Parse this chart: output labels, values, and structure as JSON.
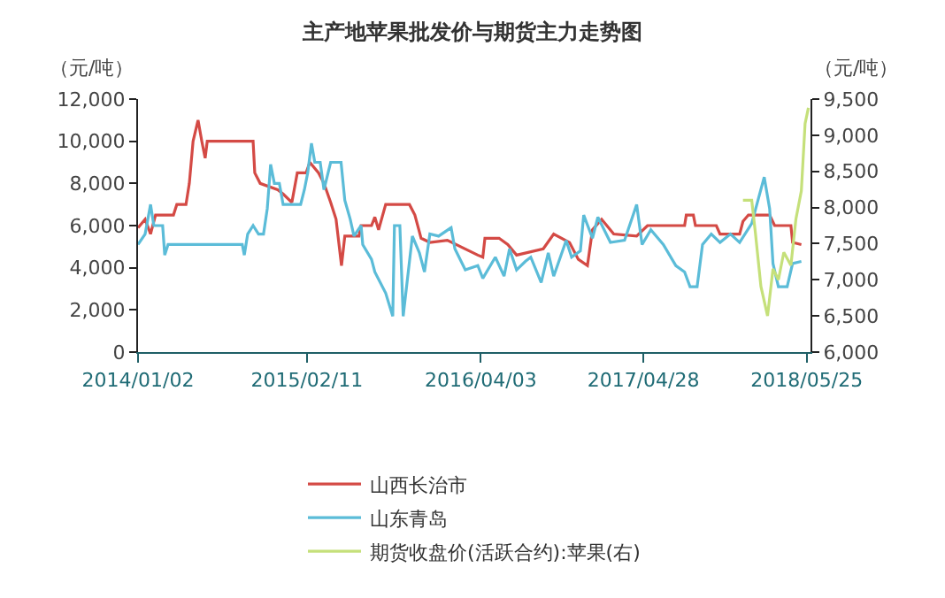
{
  "chart_data": {
    "type": "line",
    "title": "主产地苹果批发价与期货主力走势图",
    "ylabel": "（元/吨）",
    "y2label": "（元/吨）",
    "xlim": [
      "2014-01-02",
      "2018-06-03"
    ],
    "xticks": [
      {
        "value": "2014-01-02",
        "label": "2014/01/02"
      },
      {
        "value": "2015-02-11",
        "label": "2015/02/11"
      },
      {
        "value": "2016-04-03",
        "label": "2016/04/03"
      },
      {
        "value": "2017-04-28",
        "label": "2017/04/28"
      },
      {
        "value": "2018-05-25",
        "label": "2018/05/25"
      }
    ],
    "ylim": [
      0,
      12000
    ],
    "yticks": [
      0,
      {
        "value": 2000,
        "label": "2,000"
      },
      {
        "value": 4000,
        "label": "4,000"
      },
      {
        "value": 6000,
        "label": "6,000"
      },
      {
        "value": 8000,
        "label": "8,000"
      },
      {
        "value": 10000,
        "label": "10,000"
      },
      {
        "value": 12000,
        "label": "12,000"
      }
    ],
    "y2lim": [
      6000,
      9500
    ],
    "y2ticks": [
      {
        "value": 6000,
        "label": "6,000"
      },
      {
        "value": 6500,
        "label": "6,500"
      },
      {
        "value": 7000,
        "label": "7,000"
      },
      {
        "value": 7500,
        "label": "7,500"
      },
      {
        "value": 8000,
        "label": "8,000"
      },
      {
        "value": 8500,
        "label": "8,500"
      },
      {
        "value": 9000,
        "label": "9,000"
      },
      {
        "value": 9500,
        "label": "9,500"
      }
    ],
    "grid": false,
    "legend": "bottom",
    "marker": "none",
    "line_style": "solid",
    "series": [
      {
        "name": "山西长治市",
        "color": "#d44a45",
        "x": [
          "2014-01-02",
          "2014-01-19",
          "2014-02-01",
          "2014-02-13",
          "2014-03-28",
          "2014-04-05",
          "2014-04-27",
          "2014-05-05",
          "2014-05-14",
          "2014-05-26",
          "2014-06-04",
          "2014-06-12",
          "2014-06-17",
          "2014-10-05",
          "2014-10-09",
          "2014-10-22",
          "2014-12-03",
          "2014-12-16",
          "2015-01-06",
          "2015-01-19",
          "2015-02-09",
          "2015-02-18",
          "2015-03-11",
          "2015-03-24",
          "2015-04-09",
          "2015-04-22",
          "2015-05-05",
          "2015-05-13",
          "2015-06-16",
          "2015-06-21",
          "2015-07-16",
          "2015-07-24",
          "2015-08-02",
          "2015-08-19",
          "2015-10-15",
          "2015-10-28",
          "2015-11-12",
          "2015-12-03",
          "2016-01-14",
          "2016-03-27",
          "2016-04-08",
          "2016-04-13",
          "2016-05-17",
          "2016-06-07",
          "2016-06-28",
          "2016-08-31",
          "2016-09-25",
          "2016-11-02",
          "2016-11-23",
          "2016-12-15",
          "2016-12-27",
          "2017-01-18",
          "2017-02-16",
          "2017-04-12",
          "2017-05-08",
          "2017-08-05",
          "2017-08-09",
          "2017-08-26",
          "2017-08-31",
          "2017-10-20",
          "2017-10-29",
          "2017-12-15",
          "2017-12-23",
          "2018-01-05",
          "2018-02-25",
          "2018-03-09",
          "2018-04-17",
          "2018-04-21",
          "2018-05-12"
        ],
        "values": [
          5900,
          6300,
          5600,
          6500,
          6500,
          7000,
          7000,
          8000,
          10000,
          11000,
          10000,
          9200,
          10000,
          10000,
          8500,
          8000,
          7700,
          7500,
          7100,
          8500,
          8500,
          9000,
          8500,
          8000,
          7100,
          6300,
          4100,
          5500,
          5500,
          6000,
          6000,
          6400,
          5800,
          7000,
          7000,
          6500,
          5400,
          5200,
          5300,
          4600,
          4500,
          5400,
          5400,
          5100,
          4600,
          4900,
          5600,
          5200,
          4400,
          4100,
          5800,
          6300,
          5600,
          5500,
          6000,
          6000,
          6500,
          6500,
          6000,
          6000,
          5600,
          5600,
          6200,
          6500,
          6500,
          6000,
          6000,
          5200,
          5100
        ]
      },
      {
        "name": "山东青岛",
        "color": "#5bbcd8",
        "x": [
          "2014-01-02",
          "2014-01-19",
          "2014-02-01",
          "2014-02-09",
          "2014-03-02",
          "2014-03-07",
          "2014-03-15",
          "2014-09-09",
          "2014-09-14",
          "2014-09-22",
          "2014-10-05",
          "2014-10-18",
          "2014-10-30",
          "2014-11-08",
          "2014-11-16",
          "2014-11-25",
          "2014-12-07",
          "2014-12-16",
          "2015-01-27",
          "2015-02-05",
          "2015-02-13",
          "2015-02-22",
          "2015-03-02",
          "2015-03-15",
          "2015-03-24",
          "2015-04-09",
          "2015-05-04",
          "2015-05-13",
          "2015-05-26",
          "2015-06-04",
          "2015-06-21",
          "2015-06-25",
          "2015-07-16",
          "2015-07-24",
          "2015-08-19",
          "2015-09-05",
          "2015-09-09",
          "2015-09-22",
          "2015-09-30",
          "2015-10-22",
          "2015-11-08",
          "2015-11-20",
          "2015-12-03",
          "2015-12-24",
          "2016-01-23",
          "2016-02-01",
          "2016-02-26",
          "2016-03-27",
          "2016-04-08",
          "2016-05-08",
          "2016-05-29",
          "2016-06-11",
          "2016-06-28",
          "2016-07-19",
          "2016-08-01",
          "2016-08-26",
          "2016-09-12",
          "2016-09-25",
          "2016-10-25",
          "2016-11-07",
          "2016-11-28",
          "2016-12-06",
          "2016-12-27",
          "2017-01-09",
          "2017-02-08",
          "2017-03-14",
          "2017-04-12",
          "2017-04-25",
          "2017-05-16",
          "2017-06-15",
          "2017-07-15",
          "2017-08-05",
          "2017-08-18",
          "2017-09-04",
          "2017-09-17",
          "2017-10-08",
          "2017-10-29",
          "2017-11-23",
          "2017-12-15",
          "2018-01-13",
          "2018-02-12",
          "2018-02-25",
          "2018-03-05",
          "2018-03-18",
          "2018-04-08",
          "2018-04-21",
          "2018-05-12"
        ],
        "values": [
          5100,
          5600,
          7000,
          6000,
          6000,
          4600,
          5100,
          5100,
          4600,
          5600,
          6000,
          5600,
          5600,
          6800,
          8900,
          8000,
          8000,
          7000,
          7000,
          7700,
          8500,
          9900,
          9000,
          9000,
          7700,
          9000,
          9000,
          7200,
          6300,
          5500,
          6000,
          5100,
          4400,
          3800,
          2800,
          1700,
          6000,
          6000,
          1700,
          5500,
          4700,
          3800,
          5600,
          5500,
          5900,
          4900,
          3900,
          4100,
          3500,
          4500,
          3600,
          4900,
          3900,
          4300,
          4500,
          3300,
          4700,
          3600,
          5300,
          4500,
          4800,
          6500,
          5400,
          6400,
          5200,
          5300,
          7000,
          5100,
          5800,
          5100,
          4100,
          3800,
          3100,
          3100,
          5100,
          5600,
          5200,
          5600,
          5200,
          6100,
          8300,
          6800,
          4200,
          3100,
          3100,
          4200,
          4300
        ]
      },
      {
        "name": "期货收盘价(活跃合约):苹果(右)",
        "color": "#c5e07a",
        "axis": "y2",
        "x": [
          "2017-12-23",
          "2018-01-13",
          "2018-01-22",
          "2018-02-04",
          "2018-02-20",
          "2018-03-05",
          "2018-03-18",
          "2018-03-31",
          "2018-04-17",
          "2018-04-29",
          "2018-05-12",
          "2018-05-21",
          "2018-05-29"
        ],
        "values": [
          8100,
          8100,
          7640,
          6910,
          6500,
          7150,
          7000,
          7380,
          7200,
          7840,
          8230,
          9160,
          9380
        ]
      }
    ]
  }
}
